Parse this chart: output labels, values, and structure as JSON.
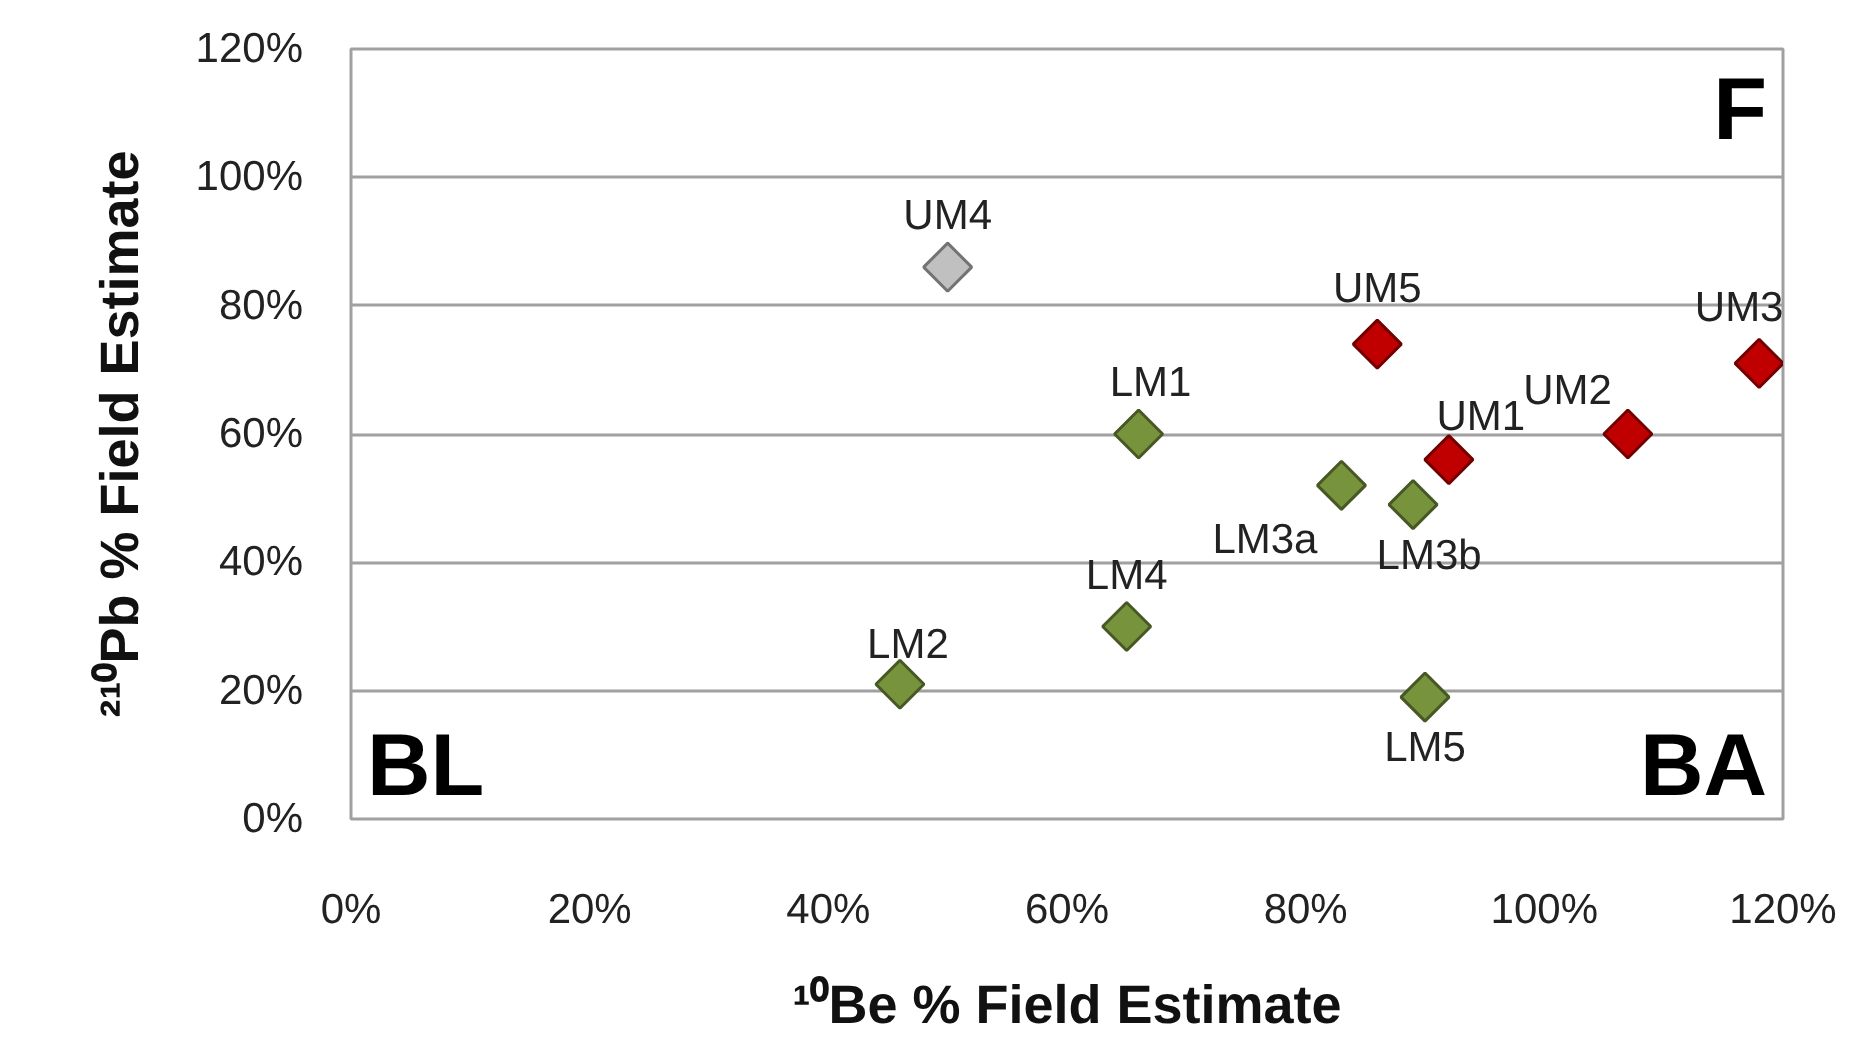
{
  "chart_data": {
    "type": "scatter",
    "xlabel": "¹⁰Be % Field Estimate",
    "ylabel": "²¹⁰Pb % Field Estimate",
    "x": [
      50,
      46,
      66,
      65,
      83,
      89,
      92,
      86,
      107,
      118,
      90
    ],
    "values": [
      86,
      21,
      60,
      30,
      52,
      49,
      56,
      74,
      60,
      71,
      19
    ],
    "colors": [
      "#c0c0c0",
      "#77933c",
      "#77933c",
      "#77933c",
      "#77933c",
      "#77933c",
      "#c00000",
      "#c00000",
      "#c00000",
      "#c00000",
      "#77933c"
    ],
    "xlim": [
      0,
      120
    ],
    "ylim": [
      0,
      120
    ],
    "xticks": [
      {
        "value": 0,
        "label": "0%"
      },
      {
        "value": 20,
        "label": "20%"
      },
      {
        "value": 40,
        "label": "40%"
      },
      {
        "value": 60,
        "label": "60%"
      },
      {
        "value": 80,
        "label": "80%"
      },
      {
        "value": 100,
        "label": "100%"
      },
      {
        "value": 120,
        "label": "120%"
      }
    ],
    "yticks": [
      {
        "value": 0,
        "label": "0%"
      },
      {
        "value": 20,
        "label": "20%"
      },
      {
        "value": 40,
        "label": "40%"
      },
      {
        "value": 60,
        "label": "60%"
      },
      {
        "value": 80,
        "label": "80%"
      },
      {
        "value": 100,
        "label": "100%"
      },
      {
        "value": 120,
        "label": "120%"
      }
    ],
    "grid": "y",
    "marker": "diamond",
    "annotations": [
      {
        "text": "UM4",
        "x": 50,
        "y": 86
      },
      {
        "text": "LM2",
        "x": 46,
        "y": 21
      },
      {
        "text": "LM1",
        "x": 66,
        "y": 60
      },
      {
        "text": "LM4",
        "x": 65,
        "y": 30
      },
      {
        "text": "LM3a",
        "x": 83,
        "y": 52
      },
      {
        "text": "LM3b",
        "x": 89,
        "y": 49
      },
      {
        "text": "UM1",
        "x": 92,
        "y": 56
      },
      {
        "text": "UM5",
        "x": 86,
        "y": 74
      },
      {
        "text": "UM2",
        "x": 107,
        "y": 60
      },
      {
        "text": "UM3",
        "x": 118,
        "y": 71
      },
      {
        "text": "LM5",
        "x": 90,
        "y": 19
      },
      "F",
      "BL",
      "BA"
    ]
  }
}
